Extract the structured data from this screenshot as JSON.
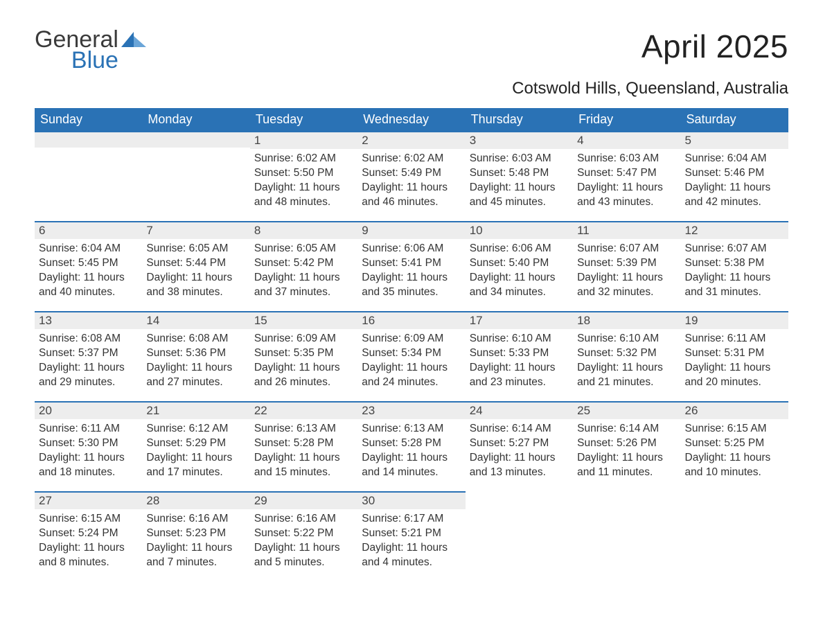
{
  "brand": {
    "part1": "General",
    "part2": "Blue",
    "mark_color": "#2a72b5"
  },
  "header": {
    "month_title": "April 2025",
    "location": "Cotswold Hills, Queensland, Australia"
  },
  "colors": {
    "header_bg": "#2a72b5",
    "header_fg": "#ffffff",
    "daynum_bg": "#ededed",
    "daynum_border": "#2a72b5",
    "text": "#333333"
  },
  "calendar": {
    "type": "table",
    "day_headers": [
      "Sunday",
      "Monday",
      "Tuesday",
      "Wednesday",
      "Thursday",
      "Friday",
      "Saturday"
    ],
    "weeks": [
      [
        null,
        null,
        {
          "n": "1",
          "sunrise": "Sunrise: 6:02 AM",
          "sunset": "Sunset: 5:50 PM",
          "daylight1": "Daylight: 11 hours",
          "daylight2": "and 48 minutes."
        },
        {
          "n": "2",
          "sunrise": "Sunrise: 6:02 AM",
          "sunset": "Sunset: 5:49 PM",
          "daylight1": "Daylight: 11 hours",
          "daylight2": "and 46 minutes."
        },
        {
          "n": "3",
          "sunrise": "Sunrise: 6:03 AM",
          "sunset": "Sunset: 5:48 PM",
          "daylight1": "Daylight: 11 hours",
          "daylight2": "and 45 minutes."
        },
        {
          "n": "4",
          "sunrise": "Sunrise: 6:03 AM",
          "sunset": "Sunset: 5:47 PM",
          "daylight1": "Daylight: 11 hours",
          "daylight2": "and 43 minutes."
        },
        {
          "n": "5",
          "sunrise": "Sunrise: 6:04 AM",
          "sunset": "Sunset: 5:46 PM",
          "daylight1": "Daylight: 11 hours",
          "daylight2": "and 42 minutes."
        }
      ],
      [
        {
          "n": "6",
          "sunrise": "Sunrise: 6:04 AM",
          "sunset": "Sunset: 5:45 PM",
          "daylight1": "Daylight: 11 hours",
          "daylight2": "and 40 minutes."
        },
        {
          "n": "7",
          "sunrise": "Sunrise: 6:05 AM",
          "sunset": "Sunset: 5:44 PM",
          "daylight1": "Daylight: 11 hours",
          "daylight2": "and 38 minutes."
        },
        {
          "n": "8",
          "sunrise": "Sunrise: 6:05 AM",
          "sunset": "Sunset: 5:42 PM",
          "daylight1": "Daylight: 11 hours",
          "daylight2": "and 37 minutes."
        },
        {
          "n": "9",
          "sunrise": "Sunrise: 6:06 AM",
          "sunset": "Sunset: 5:41 PM",
          "daylight1": "Daylight: 11 hours",
          "daylight2": "and 35 minutes."
        },
        {
          "n": "10",
          "sunrise": "Sunrise: 6:06 AM",
          "sunset": "Sunset: 5:40 PM",
          "daylight1": "Daylight: 11 hours",
          "daylight2": "and 34 minutes."
        },
        {
          "n": "11",
          "sunrise": "Sunrise: 6:07 AM",
          "sunset": "Sunset: 5:39 PM",
          "daylight1": "Daylight: 11 hours",
          "daylight2": "and 32 minutes."
        },
        {
          "n": "12",
          "sunrise": "Sunrise: 6:07 AM",
          "sunset": "Sunset: 5:38 PM",
          "daylight1": "Daylight: 11 hours",
          "daylight2": "and 31 minutes."
        }
      ],
      [
        {
          "n": "13",
          "sunrise": "Sunrise: 6:08 AM",
          "sunset": "Sunset: 5:37 PM",
          "daylight1": "Daylight: 11 hours",
          "daylight2": "and 29 minutes."
        },
        {
          "n": "14",
          "sunrise": "Sunrise: 6:08 AM",
          "sunset": "Sunset: 5:36 PM",
          "daylight1": "Daylight: 11 hours",
          "daylight2": "and 27 minutes."
        },
        {
          "n": "15",
          "sunrise": "Sunrise: 6:09 AM",
          "sunset": "Sunset: 5:35 PM",
          "daylight1": "Daylight: 11 hours",
          "daylight2": "and 26 minutes."
        },
        {
          "n": "16",
          "sunrise": "Sunrise: 6:09 AM",
          "sunset": "Sunset: 5:34 PM",
          "daylight1": "Daylight: 11 hours",
          "daylight2": "and 24 minutes."
        },
        {
          "n": "17",
          "sunrise": "Sunrise: 6:10 AM",
          "sunset": "Sunset: 5:33 PM",
          "daylight1": "Daylight: 11 hours",
          "daylight2": "and 23 minutes."
        },
        {
          "n": "18",
          "sunrise": "Sunrise: 6:10 AM",
          "sunset": "Sunset: 5:32 PM",
          "daylight1": "Daylight: 11 hours",
          "daylight2": "and 21 minutes."
        },
        {
          "n": "19",
          "sunrise": "Sunrise: 6:11 AM",
          "sunset": "Sunset: 5:31 PM",
          "daylight1": "Daylight: 11 hours",
          "daylight2": "and 20 minutes."
        }
      ],
      [
        {
          "n": "20",
          "sunrise": "Sunrise: 6:11 AM",
          "sunset": "Sunset: 5:30 PM",
          "daylight1": "Daylight: 11 hours",
          "daylight2": "and 18 minutes."
        },
        {
          "n": "21",
          "sunrise": "Sunrise: 6:12 AM",
          "sunset": "Sunset: 5:29 PM",
          "daylight1": "Daylight: 11 hours",
          "daylight2": "and 17 minutes."
        },
        {
          "n": "22",
          "sunrise": "Sunrise: 6:13 AM",
          "sunset": "Sunset: 5:28 PM",
          "daylight1": "Daylight: 11 hours",
          "daylight2": "and 15 minutes."
        },
        {
          "n": "23",
          "sunrise": "Sunrise: 6:13 AM",
          "sunset": "Sunset: 5:28 PM",
          "daylight1": "Daylight: 11 hours",
          "daylight2": "and 14 minutes."
        },
        {
          "n": "24",
          "sunrise": "Sunrise: 6:14 AM",
          "sunset": "Sunset: 5:27 PM",
          "daylight1": "Daylight: 11 hours",
          "daylight2": "and 13 minutes."
        },
        {
          "n": "25",
          "sunrise": "Sunrise: 6:14 AM",
          "sunset": "Sunset: 5:26 PM",
          "daylight1": "Daylight: 11 hours",
          "daylight2": "and 11 minutes."
        },
        {
          "n": "26",
          "sunrise": "Sunrise: 6:15 AM",
          "sunset": "Sunset: 5:25 PM",
          "daylight1": "Daylight: 11 hours",
          "daylight2": "and 10 minutes."
        }
      ],
      [
        {
          "n": "27",
          "sunrise": "Sunrise: 6:15 AM",
          "sunset": "Sunset: 5:24 PM",
          "daylight1": "Daylight: 11 hours",
          "daylight2": "and 8 minutes."
        },
        {
          "n": "28",
          "sunrise": "Sunrise: 6:16 AM",
          "sunset": "Sunset: 5:23 PM",
          "daylight1": "Daylight: 11 hours",
          "daylight2": "and 7 minutes."
        },
        {
          "n": "29",
          "sunrise": "Sunrise: 6:16 AM",
          "sunset": "Sunset: 5:22 PM",
          "daylight1": "Daylight: 11 hours",
          "daylight2": "and 5 minutes."
        },
        {
          "n": "30",
          "sunrise": "Sunrise: 6:17 AM",
          "sunset": "Sunset: 5:21 PM",
          "daylight1": "Daylight: 11 hours",
          "daylight2": "and 4 minutes."
        },
        null,
        null,
        null
      ]
    ]
  }
}
